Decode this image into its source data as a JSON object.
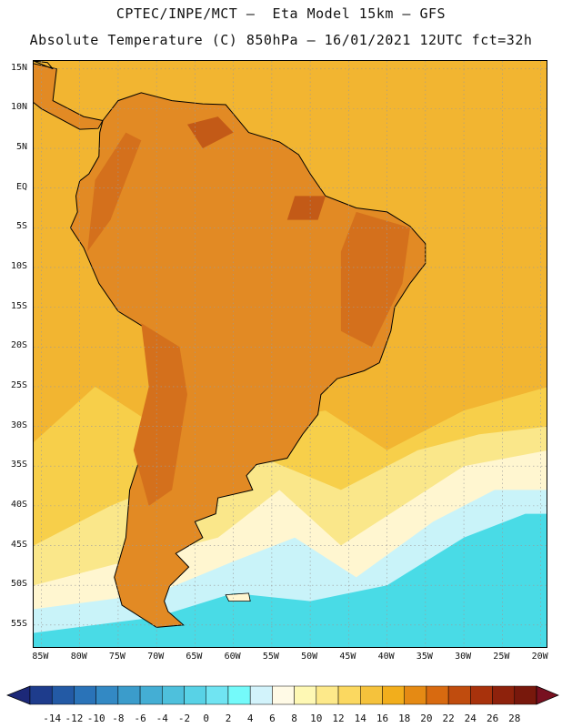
{
  "header": {
    "line1": "CPTEC/INPE/MCT –  Eta Model 15km – GFS",
    "line2": "Absolute Temperature (C) 850hPa – 16/01/2021 12UTC fct=32h"
  },
  "map": {
    "lat_labels": [
      "15N",
      "10N",
      "5N",
      "EQ",
      "5S",
      "10S",
      "15S",
      "20S",
      "25S",
      "30S",
      "35S",
      "40S",
      "45S",
      "50S",
      "55S"
    ],
    "lon_labels": [
      "85W",
      "80W",
      "75W",
      "70W",
      "65W",
      "60W",
      "55W",
      "50W",
      "45W",
      "40W",
      "35W",
      "30W",
      "25W",
      "20W"
    ],
    "lon_range": [
      -86,
      -19
    ],
    "lat_range": [
      -58,
      16
    ],
    "graticule": "dotted",
    "ocean_tones": {
      "tropical": "#f2b531",
      "subtropical": "#f7cf4a",
      "temperate": "#fae78a",
      "cool": "#fff6d0",
      "cold": "#c9f3f9",
      "coldest": "#49dbe6"
    },
    "land_tones": {
      "base": "#e28a24",
      "warm": "#d4701c",
      "hot": "#c35a17"
    }
  },
  "colorbar": {
    "labels": [
      "-14",
      "-12",
      "-10",
      "-8",
      "-6",
      "-4",
      "-2",
      "0",
      "2",
      "4",
      "6",
      "8",
      "10",
      "12",
      "14",
      "16",
      "18",
      "20",
      "22",
      "24",
      "26",
      "28"
    ],
    "colors": [
      "#1e3c8c",
      "#235aa5",
      "#2a73b8",
      "#3389c4",
      "#3b9ccb",
      "#44aed4",
      "#4ec0dc",
      "#58d2e6",
      "#70e4f2",
      "#74fafa",
      "#d2f3fb",
      "#fffae6",
      "#fef8b4",
      "#fde98a",
      "#fbd860",
      "#f5c23c",
      "#f2ae1c",
      "#e58a14",
      "#d86a10",
      "#c04c0e",
      "#a8320c",
      "#8e220c",
      "#78180c"
    ],
    "low_arrow": "#1c2878",
    "high_arrow": "#781020"
  }
}
